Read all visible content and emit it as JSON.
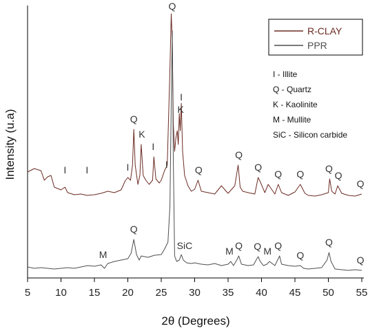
{
  "chart_data": {
    "type": "line",
    "xlabel": "2θ (Degrees)",
    "ylabel": "Intensity (u.a)",
    "xlim": [
      5,
      55
    ],
    "xticks": [
      5,
      10,
      15,
      20,
      25,
      30,
      35,
      40,
      45,
      50,
      55
    ],
    "colors": {
      "r_clay": "#6b2a22",
      "ppr": "#4d4d4d",
      "annotation_r_clay": "#7a2a22"
    },
    "legend": {
      "placement": "top-right",
      "entries": [
        "R-CLAY",
        "PPR"
      ]
    },
    "key": [
      "I - Illite",
      "Q - Quartz",
      "K - Kaolinite",
      "M - Mullite",
      "SiC - Silicon carbide"
    ],
    "series": [
      {
        "name": "R-CLAY",
        "x": [
          5,
          6,
          7,
          7.5,
          8,
          8.5,
          9,
          10,
          10.6,
          11,
          12,
          13,
          13.9,
          15,
          16,
          17,
          18,
          19,
          19.6,
          20,
          20.4,
          20.7,
          20.9,
          21.1,
          21.5,
          21.8,
          22.0,
          22.3,
          22.7,
          23.2,
          23.7,
          23.9,
          24.2,
          24.7,
          25.0,
          25.5,
          25.9,
          26.3,
          26.5,
          26.65,
          26.8,
          27.0,
          27.2,
          27.4,
          27.55,
          27.7,
          27.85,
          28.0,
          28.2,
          28.5,
          29,
          29.5,
          30,
          30.5,
          31,
          32,
          33,
          34,
          35,
          36,
          36.5,
          36.8,
          37.2,
          38,
          39,
          39.5,
          39.8,
          40.5,
          41,
          42,
          42.5,
          43,
          44,
          45,
          45.8,
          46.5,
          47,
          48,
          49,
          50,
          50.2,
          50.5,
          51,
          51.4,
          52,
          53,
          54,
          55
        ],
        "y": [
          250,
          245,
          248,
          262,
          257,
          255,
          272,
          276,
          272,
          280,
          283,
          282,
          284,
          283,
          281,
          278,
          280,
          276,
          263,
          258,
          262,
          240,
          188,
          240,
          268,
          255,
          210,
          255,
          262,
          268,
          262,
          228,
          260,
          266,
          262,
          248,
          240,
          100,
          20,
          60,
          180,
          220,
          200,
          190,
          210,
          165,
          190,
          150,
          220,
          255,
          270,
          278,
          275,
          262,
          278,
          280,
          282,
          270,
          281,
          270,
          240,
          272,
          278,
          280,
          282,
          258,
          264,
          280,
          268,
          282,
          268,
          280,
          284,
          279,
          268,
          281,
          284,
          285,
          283,
          280,
          260,
          278,
          282,
          270,
          281,
          284,
          285,
          282
        ]
      },
      {
        "name": "PPR",
        "x": [
          5,
          6,
          7,
          8,
          9,
          10,
          11,
          12,
          13,
          14,
          15,
          16,
          16.5,
          17,
          18,
          19,
          20,
          20.5,
          20.9,
          21.3,
          21.7,
          22,
          23,
          24,
          25,
          25.5,
          26.0,
          26.3,
          26.5,
          26.65,
          26.8,
          27.0,
          27.3,
          27.7,
          28.0,
          28.3,
          28.8,
          29.5,
          30,
          31,
          32,
          33,
          34,
          35,
          35.4,
          35.8,
          36.3,
          36.6,
          37,
          38,
          38.8,
          39.2,
          39.5,
          39.8,
          40.3,
          40.8,
          41.2,
          42,
          42.4,
          42.7,
          43,
          44,
          45,
          45.8,
          46.3,
          47,
          48,
          49,
          49.8,
          50.1,
          50.4,
          51,
          52,
          53,
          54,
          55
        ],
        "y": [
          388,
          390,
          389,
          390,
          391,
          390,
          389,
          390,
          388,
          386,
          387,
          385,
          390,
          383,
          380,
          378,
          376,
          368,
          348,
          370,
          378,
          372,
          374,
          371,
          370,
          362,
          352,
          300,
          150,
          45,
          230,
          372,
          380,
          378,
          370,
          378,
          382,
          383,
          382,
          384,
          385,
          383,
          386,
          384,
          380,
          386,
          378,
          372,
          384,
          386,
          385,
          378,
          373,
          380,
          386,
          384,
          380,
          386,
          378,
          372,
          384,
          386,
          387,
          386,
          390,
          391,
          390,
          389,
          378,
          367,
          380,
          391,
          392,
          393,
          392,
          393
        ]
      }
    ],
    "annotations_r_clay": [
      {
        "text": "I",
        "x": 10.6
      },
      {
        "text": "I",
        "x": 13.9
      },
      {
        "text": "I",
        "x": 20.0
      },
      {
        "text": "Q",
        "x": 20.9
      },
      {
        "text": "K",
        "x": 22.1
      },
      {
        "text": "I",
        "x": 23.8
      },
      {
        "text": "I",
        "x": 25.8
      },
      {
        "text": "Q",
        "x": 26.65
      },
      {
        "text": "I",
        "x": 28.0
      },
      {
        "text": "K",
        "x": 27.9
      },
      {
        "text": "Q",
        "x": 30.6
      },
      {
        "text": "Q",
        "x": 36.6
      },
      {
        "text": "Q",
        "x": 39.5
      },
      {
        "text": "Q",
        "x": 42.5
      },
      {
        "text": "Q",
        "x": 45.8
      },
      {
        "text": "Q",
        "x": 50.1
      },
      {
        "text": "Q",
        "x": 51.5
      },
      {
        "text": "Q",
        "x": 54.8
      }
    ],
    "annotations_ppr": [
      {
        "text": "M",
        "x": 16.3
      },
      {
        "text": "Q",
        "x": 20.9
      },
      {
        "text": "SiC",
        "x": 28.5
      },
      {
        "text": "M",
        "x": 35.2
      },
      {
        "text": "Q",
        "x": 36.6
      },
      {
        "text": "Q",
        "x": 39.4
      },
      {
        "text": "M",
        "x": 40.9
      },
      {
        "text": "Q",
        "x": 42.5
      },
      {
        "text": "Q",
        "x": 45.8
      },
      {
        "text": "Q",
        "x": 50.1
      },
      {
        "text": "Q",
        "x": 54.8
      }
    ]
  }
}
